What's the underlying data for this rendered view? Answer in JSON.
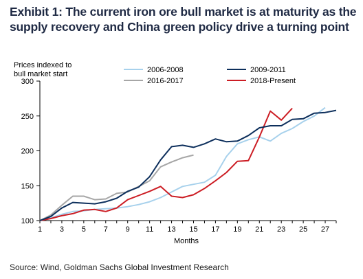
{
  "exhibit": {
    "title_line1": "Exhibit 1: The current iron ore bull market is at maturity as the",
    "title_line2": "supply recovery and China green policy drive a turning point",
    "source": "Source: Wind, Goldman Sachs Global Investment Research"
  },
  "colors": {
    "title": "#1f2a44",
    "s2006": "#a7d1ec",
    "s2009": "#0d2f5c",
    "s2016": "#a6a6a6",
    "s2018": "#cc1d24",
    "axis": "#000000"
  },
  "chart_data": {
    "type": "line",
    "ylabel_line1": "Prices indexed to",
    "ylabel_line2": "bull market start",
    "xlabel": "Months",
    "ylim": [
      100,
      300
    ],
    "xlim": [
      1,
      28
    ],
    "yticks": [
      100,
      150,
      200,
      250,
      300
    ],
    "xticks": [
      1,
      3,
      5,
      7,
      9,
      11,
      13,
      15,
      17,
      19,
      21,
      23,
      25,
      27
    ],
    "legend_position": "top",
    "grid": false,
    "series": [
      {
        "name": "2006-2008",
        "color": "#a7d1ec",
        "x": [
          1,
          2,
          3,
          4,
          5,
          6,
          7,
          8,
          9,
          10,
          11,
          12,
          13,
          14,
          15,
          16,
          17,
          18,
          19,
          20,
          21,
          22,
          23,
          24,
          25,
          26,
          27
        ],
        "y": [
          100,
          104,
          109,
          113,
          114,
          116,
          117,
          118,
          120,
          123,
          127,
          133,
          141,
          149,
          152,
          155,
          165,
          192,
          210,
          216,
          220,
          214,
          225,
          232,
          242,
          250,
          262
        ]
      },
      {
        "name": "2009-2011",
        "color": "#0d2f5c",
        "x": [
          1,
          2,
          3,
          4,
          5,
          6,
          7,
          8,
          9,
          10,
          11,
          12,
          13,
          14,
          15,
          16,
          17,
          18,
          19,
          20,
          21,
          22,
          23,
          24,
          25,
          26,
          27,
          28
        ],
        "y": [
          100,
          106,
          118,
          126,
          125,
          124,
          127,
          132,
          142,
          148,
          163,
          187,
          206,
          208,
          205,
          210,
          217,
          213,
          214,
          222,
          233,
          236,
          236,
          245,
          246,
          254,
          255,
          258
        ]
      },
      {
        "name": "2016-2017",
        "color": "#a6a6a6",
        "x": [
          1,
          2,
          3,
          4,
          5,
          6,
          7,
          8,
          9,
          10,
          11,
          12,
          13,
          14,
          15
        ],
        "y": [
          100,
          108,
          122,
          135,
          135,
          130,
          131,
          139,
          141,
          149,
          157,
          177,
          184,
          190,
          194
        ]
      },
      {
        "name": "2018-Present",
        "color": "#cc1d24",
        "x": [
          1,
          2,
          3,
          4,
          5,
          6,
          7,
          8,
          9,
          10,
          11,
          12,
          13,
          14,
          15,
          16,
          17,
          18,
          19,
          20,
          21,
          22,
          23,
          24
        ],
        "y": [
          100,
          103,
          107,
          110,
          115,
          116,
          113,
          118,
          130,
          136,
          142,
          149,
          135,
          133,
          137,
          146,
          157,
          169,
          185,
          186,
          220,
          257,
          244,
          261
        ]
      }
    ]
  }
}
